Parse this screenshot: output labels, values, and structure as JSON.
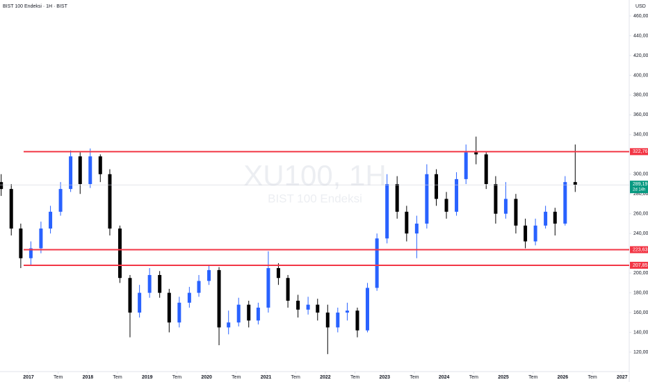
{
  "chart_data": {
    "type": "candlestick",
    "title": "BIST 100 Endeksi · 1H · BIST",
    "watermark": "XU100, 1H",
    "watermark_subtitle": "BIST 100 Endeksi",
    "currency": "USD",
    "up_color": "#2962ff",
    "down_color": "#000000",
    "level_color": "#f23645",
    "last_color": "#089981",
    "x": [
      2016.54,
      2016.71,
      2016.87,
      2017.04,
      2017.21,
      2017.37,
      2017.54,
      2017.71,
      2017.87,
      2018.04,
      2018.21,
      2018.37,
      2018.54,
      2018.71,
      2018.87,
      2019.04,
      2019.21,
      2019.37,
      2019.54,
      2019.71,
      2019.87,
      2020.04,
      2020.21,
      2020.37,
      2020.54,
      2020.71,
      2020.87,
      2021.04,
      2021.21,
      2021.37,
      2021.54,
      2021.71,
      2021.87,
      2022.04,
      2022.21,
      2022.37,
      2022.54,
      2022.71,
      2022.87,
      2023.04,
      2023.21,
      2023.37,
      2023.54,
      2023.71,
      2023.87,
      2024.04,
      2024.21,
      2024.37,
      2024.54,
      2024.71,
      2024.87,
      2025.04,
      2025.21,
      2025.37,
      2025.54,
      2025.71,
      2025.87,
      2026.04,
      2026.21
    ],
    "open": [
      292,
      285,
      245,
      215,
      225,
      245,
      262,
      285,
      318,
      290,
      318,
      300,
      245,
      195,
      160,
      180,
      198,
      180,
      150,
      170,
      180,
      192,
      203,
      145,
      150,
      168,
      152,
      165,
      205,
      195,
      172,
      163,
      168,
      160,
      145,
      160,
      162,
      142,
      185,
      235,
      290,
      262,
      240,
      250,
      300,
      275,
      262,
      295,
      322,
      320,
      290,
      260,
      275,
      248,
      232,
      248,
      262,
      250,
      292
    ],
    "high": [
      300,
      290,
      250,
      232,
      252,
      268,
      292,
      324,
      322,
      326,
      320,
      305,
      248,
      198,
      188,
      205,
      202,
      184,
      176,
      186,
      198,
      208,
      206,
      162,
      175,
      172,
      170,
      222,
      210,
      198,
      178,
      176,
      174,
      168,
      165,
      170,
      165,
      190,
      240,
      300,
      298,
      268,
      258,
      310,
      305,
      282,
      302,
      330,
      338,
      322,
      298,
      292,
      280,
      255,
      255,
      268,
      266,
      298,
      330
    ],
    "low": [
      278,
      238,
      205,
      208,
      220,
      240,
      258,
      282,
      280,
      286,
      292,
      238,
      190,
      135,
      155,
      175,
      175,
      140,
      145,
      165,
      176,
      188,
      127,
      138,
      146,
      145,
      148,
      160,
      188,
      165,
      155,
      158,
      152,
      118,
      140,
      152,
      135,
      140,
      182,
      230,
      255,
      232,
      215,
      245,
      268,
      255,
      258,
      290,
      310,
      285,
      250,
      255,
      240,
      225,
      228,
      245,
      238,
      248,
      282
    ],
    "close": [
      285,
      245,
      215,
      225,
      245,
      262,
      285,
      318,
      290,
      318,
      300,
      245,
      195,
      160,
      180,
      198,
      180,
      150,
      170,
      180,
      192,
      203,
      145,
      150,
      168,
      152,
      165,
      205,
      195,
      172,
      163,
      168,
      160,
      145,
      160,
      162,
      142,
      185,
      235,
      290,
      262,
      240,
      250,
      300,
      275,
      262,
      295,
      322,
      320,
      290,
      260,
      275,
      248,
      232,
      248,
      262,
      250,
      292,
      289.19
    ],
    "levels": [
      {
        "value": 322.76,
        "label": "322,76"
      },
      {
        "value": 223.63,
        "label": "223,63"
      },
      {
        "value": 207.85,
        "label": "207,85"
      }
    ],
    "last_price": {
      "value": 289.19,
      "label": "289,19"
    },
    "last_countdown": "2d 14h",
    "xlim": [
      2016.52,
      2027.12
    ],
    "xticks": [
      {
        "value": 2017,
        "label": "2017"
      },
      {
        "value": 2017.5,
        "label": "Tem"
      },
      {
        "value": 2018,
        "label": "2018"
      },
      {
        "value": 2018.5,
        "label": "Tem"
      },
      {
        "value": 2019,
        "label": "2019"
      },
      {
        "value": 2019.5,
        "label": "Tem"
      },
      {
        "value": 2020,
        "label": "2020"
      },
      {
        "value": 2020.5,
        "label": "Tem"
      },
      {
        "value": 2021,
        "label": "2021"
      },
      {
        "value": 2021.5,
        "label": "Tem"
      },
      {
        "value": 2022,
        "label": "2022"
      },
      {
        "value": 2022.5,
        "label": "Tem"
      },
      {
        "value": 2023,
        "label": "2023"
      },
      {
        "value": 2023.5,
        "label": "Tem"
      },
      {
        "value": 2024,
        "label": "2024"
      },
      {
        "value": 2024.5,
        "label": "Tem"
      },
      {
        "value": 2025,
        "label": "2025"
      },
      {
        "value": 2025.5,
        "label": "Tem"
      },
      {
        "value": 2026,
        "label": "2026"
      },
      {
        "value": 2026.5,
        "label": "Tem"
      },
      {
        "value": 2027,
        "label": "2027"
      }
    ],
    "ylim": [
      120,
      460
    ],
    "yticks": [
      {
        "value": 120,
        "label": "120,00"
      },
      {
        "value": 140,
        "label": "140,00"
      },
      {
        "value": 160,
        "label": "160,00"
      },
      {
        "value": 180,
        "label": "180,00"
      },
      {
        "value": 200,
        "label": "200,00"
      },
      {
        "value": 240,
        "label": "240,00"
      },
      {
        "value": 260,
        "label": "260,00"
      },
      {
        "value": 280,
        "label": "280,00"
      },
      {
        "value": 300,
        "label": "300,00"
      },
      {
        "value": 340,
        "label": "340,00"
      },
      {
        "value": 360,
        "label": "360,00"
      },
      {
        "value": 380,
        "label": "380,00"
      },
      {
        "value": 400,
        "label": "400,00"
      },
      {
        "value": 420,
        "label": "420,00"
      },
      {
        "value": 440,
        "label": "440,00"
      },
      {
        "value": 460,
        "label": "460,00"
      }
    ]
  }
}
